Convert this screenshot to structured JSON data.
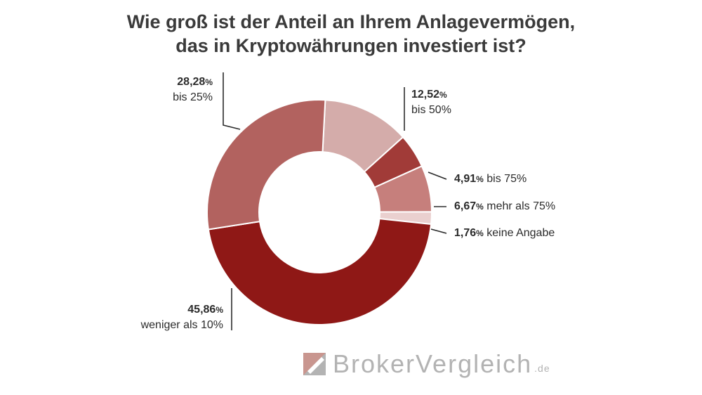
{
  "title_line1": "Wie groß ist der Anteil an Ihrem Anlagevermögen,",
  "title_line2": "das in Kryptowährungen investiert ist?",
  "chart_data": {
    "type": "pie",
    "title": "Wie groß ist der Anteil an Ihrem Anlagevermögen, das in Kryptowährungen investiert ist?",
    "slices": [
      {
        "label": "bis 50%",
        "value": 12.52,
        "value_text": "12,52",
        "color": "#d4acaa"
      },
      {
        "label": "bis 75%",
        "value": 4.91,
        "value_text": "4,91",
        "color": "#a13b38"
      },
      {
        "label": "mehr als 75%",
        "value": 6.67,
        "value_text": "6,67",
        "color": "#c67f7c"
      },
      {
        "label": "keine Angabe",
        "value": 1.76,
        "value_text": "1,76",
        "color": "#ead0cf"
      },
      {
        "label": "weniger als 10%",
        "value": 45.86,
        "value_text": "45,86",
        "color": "#8f1816"
      },
      {
        "label": "bis 25%",
        "value": 28.28,
        "value_text": "28,28",
        "color": "#b2625f"
      }
    ],
    "percent_sign": "%",
    "donut": true
  },
  "logo": {
    "text": "BrokerVergleich",
    "suffix": ".de",
    "mark_colors": [
      "#c9968f",
      "#b3b3b3"
    ]
  }
}
